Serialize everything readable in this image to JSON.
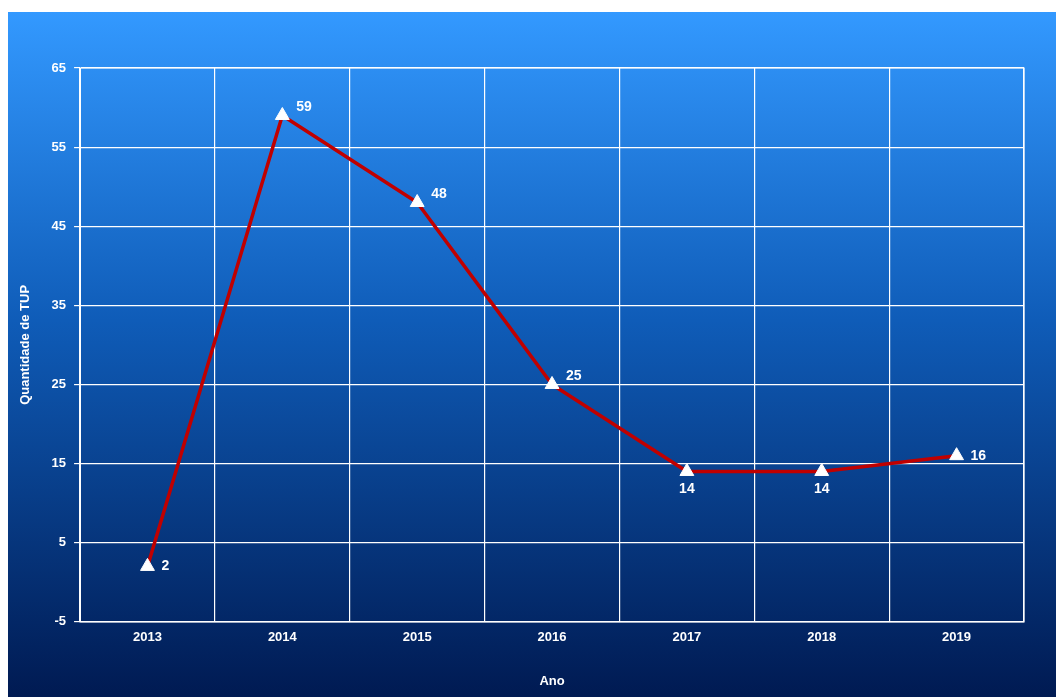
{
  "chart_data": {
    "type": "line",
    "xlabel": "Ano",
    "ylabel": "Quantidade de TUP",
    "categories": [
      "2013",
      "2014",
      "2015",
      "2016",
      "2017",
      "2018",
      "2019"
    ],
    "series": [
      {
        "color": "#c00000",
        "values": [
          2,
          59,
          48,
          25,
          14,
          14,
          16
        ]
      }
    ],
    "ylim": [
      -5,
      65
    ],
    "yticks": [
      -5,
      5,
      15,
      25,
      35,
      45,
      55,
      65
    ],
    "grid": true,
    "legend": false,
    "marker": "triangle",
    "line_style": "solid",
    "data_labels": true
  }
}
